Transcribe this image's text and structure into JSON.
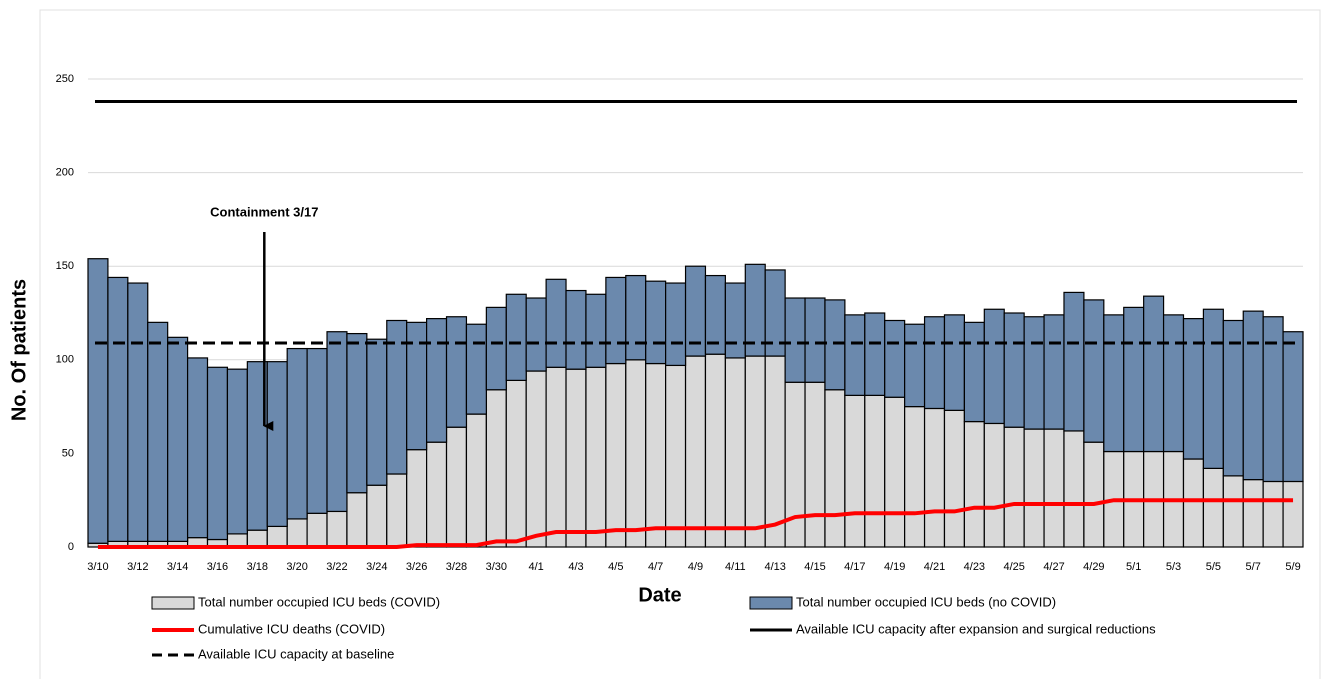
{
  "chart_data": {
    "type": "bar",
    "stacked": true,
    "y_label": "No. Of patients",
    "x_label": "Date",
    "categories": [
      "3/10",
      null,
      "3/12",
      null,
      "3/14",
      null,
      "3/16",
      null,
      "3/18",
      null,
      "3/20",
      null,
      "3/22",
      null,
      "3/24",
      null,
      "3/26",
      null,
      "3/28",
      null,
      "3/30",
      null,
      "4/1",
      null,
      "4/3",
      null,
      "4/5",
      null,
      "4/7",
      null,
      "4/9",
      null,
      "4/11",
      null,
      "4/13",
      null,
      "4/15",
      null,
      "4/17",
      null,
      "4/19",
      null,
      "4/21",
      null,
      "4/23",
      null,
      "4/25",
      null,
      "4/27",
      null,
      "4/29",
      null,
      "5/1",
      null,
      "5/3",
      null,
      "5/5",
      null,
      "5/7",
      null,
      "5/9"
    ],
    "series": [
      {
        "name": "Total number occupied ICU beds (COVID)",
        "type": "bar",
        "color": "#d9d9d9",
        "values": [
          2,
          3,
          3,
          3,
          3,
          5,
          4,
          7,
          9,
          11,
          15,
          18,
          19,
          29,
          33,
          39,
          52,
          56,
          64,
          71,
          84,
          89,
          94,
          96,
          95,
          96,
          98,
          100,
          98,
          97,
          102,
          103,
          101,
          102,
          102,
          88,
          88,
          84,
          81,
          81,
          80,
          75,
          74,
          73,
          67,
          66,
          64,
          63,
          63,
          62,
          56,
          51,
          51,
          51,
          51,
          47,
          42,
          38,
          36,
          35,
          35
        ]
      },
      {
        "name": "Total number occupied ICU beds (no COVID)",
        "type": "bar",
        "color": "#6b89ad",
        "values": [
          152,
          141,
          138,
          117,
          109,
          96,
          92,
          88,
          90,
          88,
          91,
          88,
          96,
          85,
          78,
          82,
          68,
          66,
          59,
          48,
          44,
          46,
          39,
          47,
          42,
          39,
          46,
          45,
          44,
          44,
          48,
          42,
          40,
          49,
          46,
          45,
          45,
          48,
          43,
          44,
          41,
          44,
          49,
          51,
          53,
          61,
          61,
          60,
          61,
          74,
          76,
          73,
          77,
          83,
          73,
          75,
          85,
          83,
          90,
          88,
          80
        ]
      },
      {
        "name": "Cumulative ICU deaths (COVID)",
        "type": "line",
        "color": "#ff0000",
        "values": [
          0,
          0,
          0,
          0,
          0,
          0,
          0,
          0,
          0,
          0,
          0,
          0,
          0,
          0,
          0,
          0,
          1,
          1,
          1,
          1,
          3,
          3,
          6,
          8,
          8,
          8,
          9,
          9,
          10,
          10,
          10,
          10,
          10,
          10,
          12,
          16,
          17,
          17,
          18,
          18,
          18,
          18,
          19,
          19,
          21,
          21,
          23,
          23,
          23,
          23,
          23,
          25,
          25,
          25,
          25,
          25,
          25,
          25,
          25,
          25,
          25
        ]
      }
    ],
    "hlines": [
      {
        "name": "Available ICU capacity after expansion and surgical reductions",
        "value": 238,
        "color": "#000000",
        "dashed": false
      },
      {
        "name": "Available ICU capacity at baseline",
        "value": 109,
        "color": "#000000",
        "dashed": true
      }
    ],
    "annotation": {
      "text": "Containment 3/17",
      "category_index": 8
    },
    "ylim": [
      0,
      250
    ],
    "yticks": [
      0,
      50,
      100,
      150,
      200,
      250
    ],
    "grid": true
  }
}
